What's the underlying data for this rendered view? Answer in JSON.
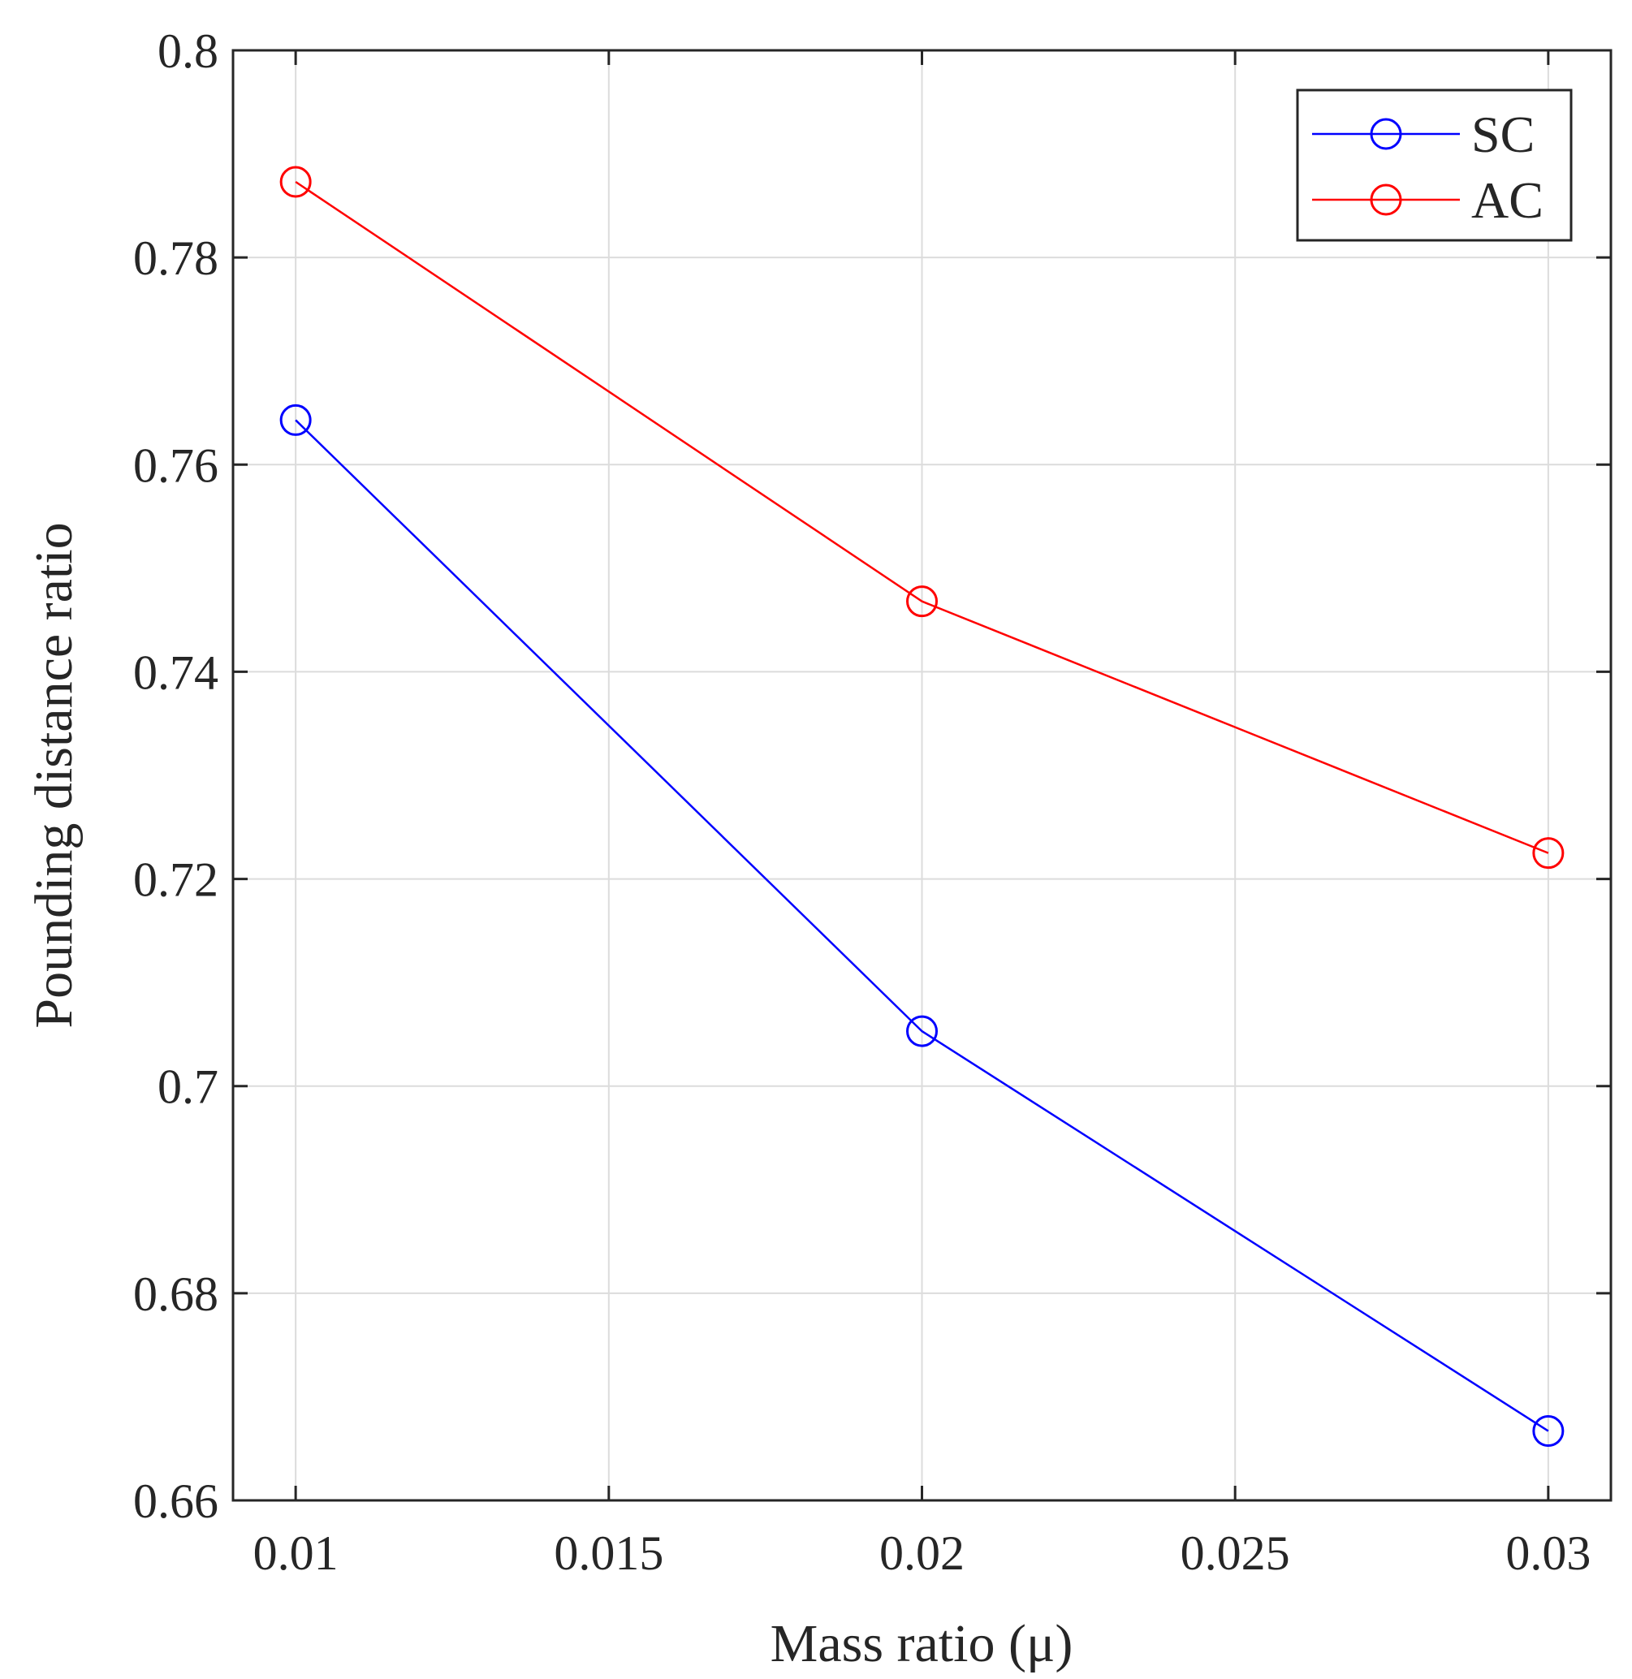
{
  "chart_data": {
    "type": "line",
    "title": "",
    "xlabel": "Mass ratio (μ)",
    "ylabel": "Pounding distance ratio",
    "xlim": [
      0.009,
      0.031
    ],
    "ylim": [
      0.66,
      0.8
    ],
    "grid": true,
    "legend_position": "top-right",
    "x_ticks": [
      0.01,
      0.015,
      0.02,
      0.025,
      0.03
    ],
    "x_tick_labels": [
      "0.01",
      "0.015",
      "0.02",
      "0.025",
      "0.03"
    ],
    "y_ticks": [
      0.66,
      0.68,
      0.7,
      0.72,
      0.74,
      0.76,
      0.78,
      0.8
    ],
    "y_tick_labels": [
      "0.66",
      "0.68",
      "0.7",
      "0.72",
      "0.74",
      "0.76",
      "0.78",
      "0.8"
    ],
    "x": [
      0.01,
      0.02,
      0.03
    ],
    "series": [
      {
        "name": "SC",
        "color": "#0000ff",
        "marker": "circle",
        "values": [
          0.7643,
          0.7053,
          0.6667
        ]
      },
      {
        "name": "AC",
        "color": "#ff0000",
        "marker": "circle",
        "values": [
          0.7873,
          0.7468,
          0.7225
        ]
      }
    ]
  }
}
